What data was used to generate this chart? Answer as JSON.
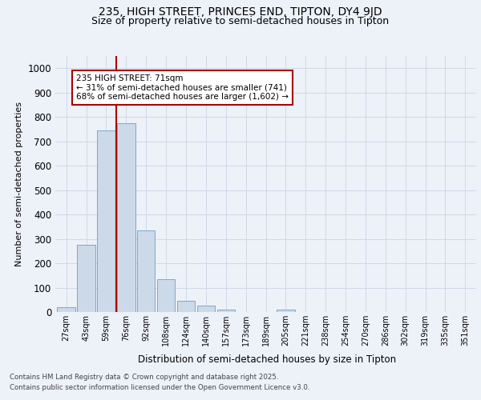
{
  "title_line1": "235, HIGH STREET, PRINCES END, TIPTON, DY4 9JD",
  "title_line2": "Size of property relative to semi-detached houses in Tipton",
  "xlabel": "Distribution of semi-detached houses by size in Tipton",
  "ylabel": "Number of semi-detached properties",
  "categories": [
    "27sqm",
    "43sqm",
    "59sqm",
    "76sqm",
    "92sqm",
    "108sqm",
    "124sqm",
    "140sqm",
    "157sqm",
    "173sqm",
    "189sqm",
    "205sqm",
    "221sqm",
    "238sqm",
    "254sqm",
    "270sqm",
    "286sqm",
    "302sqm",
    "319sqm",
    "335sqm",
    "351sqm"
  ],
  "values": [
    20,
    275,
    745,
    775,
    335,
    135,
    45,
    25,
    10,
    0,
    0,
    10,
    0,
    0,
    0,
    0,
    0,
    0,
    0,
    0,
    0
  ],
  "bar_color": "#ccd9e8",
  "bar_edge_color": "#7fa8c9",
  "grid_color": "#d0d8e8",
  "annotation_box_color": "#aa0000",
  "vline_color": "#aa0000",
  "property_label": "235 HIGH STREET: 71sqm",
  "pct_smaller": "31% of semi-detached houses are smaller (741)",
  "pct_larger": "68% of semi-detached houses are larger (1,602)",
  "ylim": [
    0,
    1050
  ],
  "yticks": [
    0,
    100,
    200,
    300,
    400,
    500,
    600,
    700,
    800,
    900,
    1000
  ],
  "footnote_line1": "Contains HM Land Registry data © Crown copyright and database right 2025.",
  "footnote_line2": "Contains public sector information licensed under the Open Government Licence v3.0.",
  "background_color": "#edf1f8",
  "vline_x_index": 2.5
}
